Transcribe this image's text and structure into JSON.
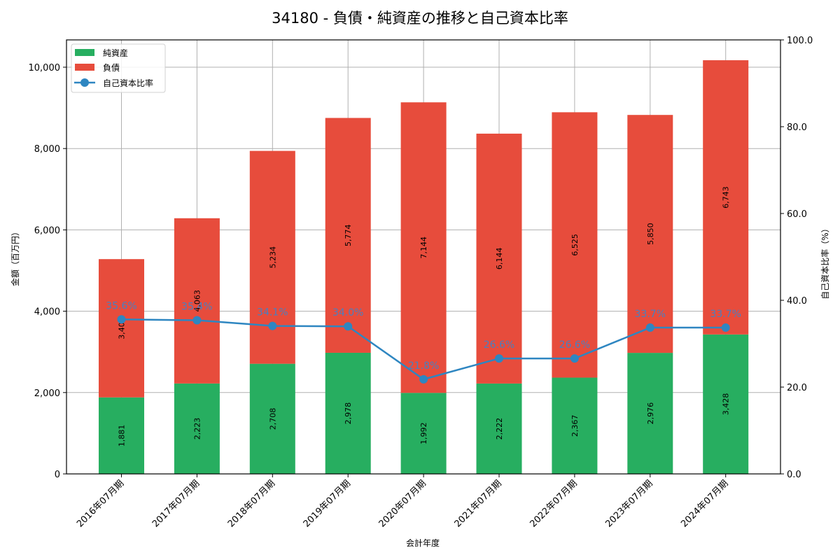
{
  "chart_data": {
    "type": "bar",
    "stacked": true,
    "title": "34180 - 負債・純資産の推移と自己資本比率",
    "xlabel": "会計年度",
    "ylabel": "金額（百万円）",
    "ylabel_right": "自己資本比率（%）",
    "categories": [
      "2016年07月期",
      "2017年07月期",
      "2018年07月期",
      "2019年07月期",
      "2020年07月期",
      "2021年07月期",
      "2022年07月期",
      "2023年07月期",
      "2024年07月期"
    ],
    "series": [
      {
        "name": "純資産",
        "type": "bar",
        "color": "#27ae60",
        "values": [
          1881,
          2223,
          2708,
          2978,
          1992,
          2222,
          2367,
          2976,
          3428
        ]
      },
      {
        "name": "負債",
        "type": "bar",
        "color": "#e74c3c",
        "values": [
          3400,
          4063,
          5234,
          5774,
          7144,
          6144,
          6525,
          5850,
          6743
        ]
      },
      {
        "name": "自己資本比率",
        "type": "line",
        "axis": "right",
        "color": "#2e86c1",
        "values": [
          35.6,
          35.4,
          34.1,
          34.0,
          21.8,
          26.6,
          26.6,
          33.7,
          33.7
        ]
      }
    ],
    "bar_labels": {
      "equity": [
        "1,881",
        "2,223",
        "2,708",
        "2,978",
        "1,992",
        "2,222",
        "2,367",
        "2,976",
        "3,428"
      ],
      "liabilities": [
        "3,400",
        "4,063",
        "5,234",
        "5,774",
        "7,144",
        "6,144",
        "6,525",
        "5,850",
        "6,743"
      ],
      "ratio": [
        "35.6%",
        "35.4%",
        "34.1%",
        "34.0%",
        "21.8%",
        "26.6%",
        "26.6%",
        "33.7%",
        "33.7%"
      ]
    },
    "ylim": [
      0,
      10671
    ],
    "yticks": [
      "0",
      "2,000",
      "4,000",
      "6,000",
      "8,000",
      "10,000"
    ],
    "ylim_right": [
      0,
      100
    ],
    "yticks_right": [
      "0.0",
      "20.0",
      "40.0",
      "60.0",
      "80.0",
      "100.0"
    ],
    "grid": true,
    "legend_position": "upper left",
    "legend": [
      "純資産",
      "負債",
      "自己資本比率"
    ]
  }
}
